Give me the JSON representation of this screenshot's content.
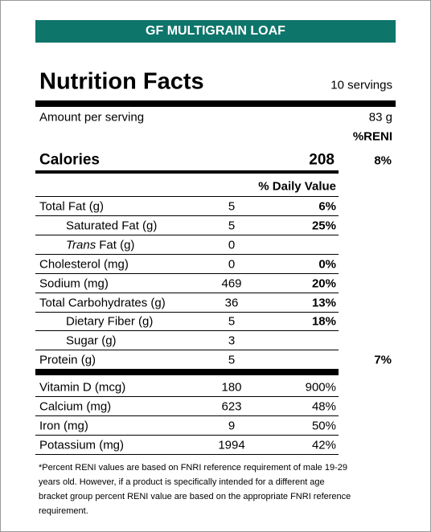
{
  "header": {
    "title": "GF MULTIGRAIN LOAF"
  },
  "heading": {
    "title": "Nutrition Facts",
    "servings": "10 servings"
  },
  "serving": {
    "label": "Amount per serving",
    "amount": "83 g",
    "reni_header": "%RENI"
  },
  "calories": {
    "label": "Calories",
    "value": "208",
    "reni": "8%"
  },
  "dv_header": "% Daily Value",
  "nutrients": [
    {
      "name": "Total Fat (g)",
      "amount": "5",
      "dv": "6%",
      "indent": false
    },
    {
      "name": "Saturated Fat (g)",
      "amount": "5",
      "dv": "25%",
      "indent": true
    },
    {
      "name_italic": "Trans",
      "name": "Fat (g)",
      "amount": "0",
      "indent": true
    },
    {
      "name": "Cholesterol (mg)",
      "amount": "0",
      "dv": "0%",
      "indent": false
    },
    {
      "name": "Sodium (mg)",
      "amount": "469",
      "dv": "20%",
      "indent": false
    },
    {
      "name": "Total Carbohydrates (g)",
      "amount": "36",
      "dv": "13%",
      "indent": false
    },
    {
      "name": "Dietary Fiber (g)",
      "amount": "5",
      "dv": "18%",
      "indent": true
    },
    {
      "name": "Sugar (g)",
      "amount": "3",
      "indent": true
    },
    {
      "name": "Protein (g)",
      "amount": "5",
      "reni": "7%",
      "indent": false
    }
  ],
  "vitamins": [
    {
      "name": "Vitamin D (mcg)",
      "amount": "180",
      "dv": "900%"
    },
    {
      "name": "Calcium (mg)",
      "amount": "623",
      "dv": "48%"
    },
    {
      "name": "Iron (mg)",
      "amount": "9",
      "dv": "50%"
    },
    {
      "name": "Potassium (mg)",
      "amount": "1994",
      "dv": "42%"
    }
  ],
  "footnote": [
    "*Percent RENI values are based on FNRI reference requirement of male 19-29",
    "years old. However, if a product is specifically intended for a different age",
    "bracket group percent RENI value are based on the appropriate FNRI reference",
    "requirement."
  ]
}
